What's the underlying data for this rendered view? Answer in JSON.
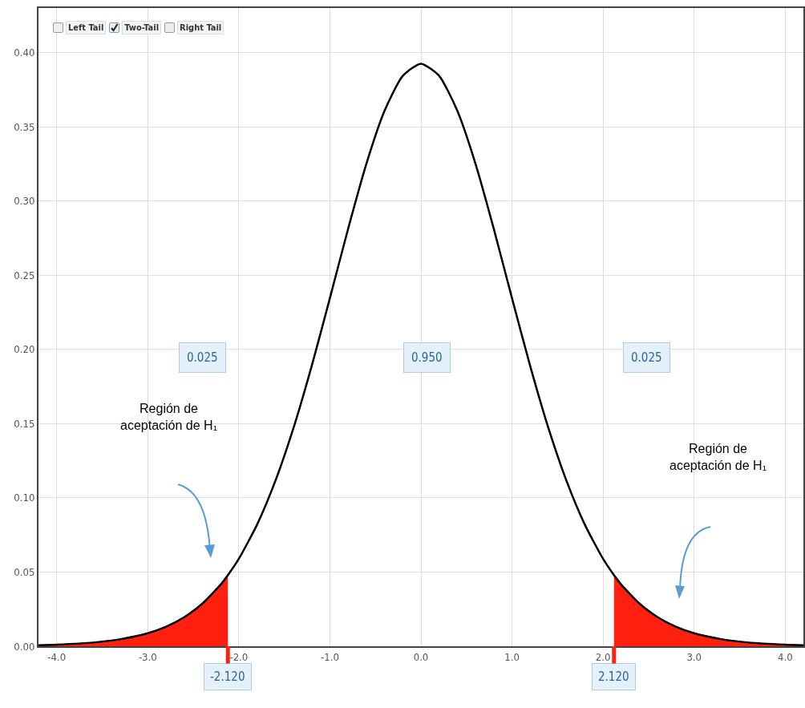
{
  "chart_data": {
    "type": "line",
    "x": [
      -4.2,
      -4.0,
      -3.6,
      -3.3,
      -3.0,
      -2.8,
      -2.6,
      -2.4,
      -2.2,
      -2.12,
      -2.0,
      -1.8,
      -1.6,
      -1.4,
      -1.2,
      -1.0,
      -0.8,
      -0.6,
      -0.4,
      -0.2,
      0,
      0.2,
      0.4,
      0.6,
      0.8,
      1.0,
      1.2,
      1.4,
      1.6,
      1.8,
      2.0,
      2.12,
      2.2,
      2.4,
      2.6,
      2.8,
      3.0,
      3.3,
      3.6,
      4.0,
      4.2
    ],
    "series": [
      {
        "type": "area",
        "color": "#ff2010",
        "x": [
          -4.2,
          -4.0,
          -3.6,
          -3.3,
          -3.0,
          -2.8,
          -2.6,
          -2.4,
          -2.2,
          -2.12
        ],
        "values": [
          0.0007,
          0.0011,
          0.0025,
          0.0048,
          0.0088,
          0.0132,
          0.0196,
          0.0288,
          0.0415,
          0.0479
        ]
      },
      {
        "type": "area",
        "color": "#ff2010",
        "x": [
          2.12,
          2.2,
          2.4,
          2.6,
          2.8,
          3.0,
          3.3,
          3.6,
          4.0,
          4.2
        ],
        "values": [
          0.0479,
          0.0415,
          0.0288,
          0.0196,
          0.0132,
          0.0088,
          0.0048,
          0.0025,
          0.0011,
          0.0007
        ]
      },
      {
        "color": "#000000",
        "values": [
          0.0007,
          0.0011,
          0.0025,
          0.0048,
          0.0088,
          0.0132,
          0.0196,
          0.0288,
          0.0415,
          0.0479,
          0.0589,
          0.0819,
          0.1112,
          0.147,
          0.1887,
          0.2345,
          0.2812,
          0.3249,
          0.3607,
          0.3843,
          0.3925,
          0.3843,
          0.3607,
          0.3249,
          0.2812,
          0.2345,
          0.1887,
          0.147,
          0.1112,
          0.0819,
          0.0589,
          0.0479,
          0.0415,
          0.0288,
          0.0196,
          0.0132,
          0.0088,
          0.0048,
          0.0025,
          0.0011,
          0.0007
        ]
      }
    ],
    "xlim": [
      -4.2,
      4.2
    ],
    "xticks": [
      {
        "value": -4,
        "label": "-4.0"
      },
      {
        "value": -3,
        "label": "-3.0"
      },
      {
        "value": -2,
        "label": "-2.0"
      },
      {
        "value": -1,
        "label": "-1.0"
      },
      {
        "value": 0,
        "label": "0.0"
      },
      {
        "value": 1,
        "label": "1.0"
      },
      {
        "value": 2,
        "label": "2.0"
      },
      {
        "value": 3,
        "label": "3.0"
      },
      {
        "value": 4,
        "label": "4.0"
      }
    ],
    "ylim": [
      0,
      0.43
    ],
    "yticks": [
      {
        "value": 0,
        "label": "0.00"
      },
      {
        "value": 0.05,
        "label": "0.05"
      },
      {
        "value": 0.1,
        "label": "0.10"
      },
      {
        "value": 0.15,
        "label": "0.15"
      },
      {
        "value": 0.2,
        "label": "0.20"
      },
      {
        "value": 0.25,
        "label": "0.25"
      },
      {
        "value": 0.3,
        "label": "0.30"
      },
      {
        "value": 0.35,
        "label": "0.35"
      },
      {
        "value": 0.4,
        "label": "0.40"
      }
    ],
    "grid": true,
    "marker": "none",
    "line_style": "solid",
    "annotations": [
      "Left Tail",
      "Two-Tail",
      "Right Tail",
      "0.025",
      "0.950",
      "0.025",
      {
        "text": "-2.120",
        "x": -2.12,
        "y": 0
      },
      {
        "text": "2.120",
        "x": 2.12,
        "y": 0
      },
      "Región de aceptación de H₁",
      "Región de aceptación de H₁"
    ]
  }
}
